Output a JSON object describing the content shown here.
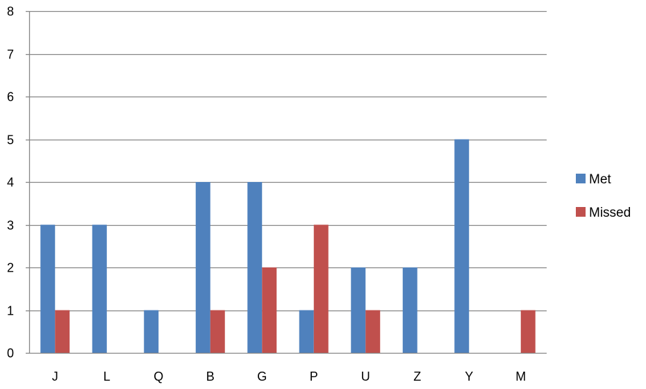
{
  "chart_data": {
    "type": "bar",
    "categories": [
      "J",
      "L",
      "Q",
      "B",
      "G",
      "P",
      "U",
      "Z",
      "Y",
      "M"
    ],
    "series": [
      {
        "name": "Met",
        "color": "#4F81BD",
        "values": [
          3,
          3,
          1,
          4,
          4,
          1,
          2,
          2,
          5,
          0
        ]
      },
      {
        "name": "Missed",
        "color": "#C0504D",
        "values": [
          1,
          0,
          0,
          1,
          2,
          3,
          1,
          0,
          0,
          1
        ]
      }
    ],
    "title": "",
    "xlabel": "",
    "ylabel": "",
    "ylim": [
      0,
      8
    ],
    "yticks": [
      "0",
      "1",
      "2",
      "3",
      "4",
      "5",
      "6",
      "7",
      "8"
    ],
    "grid": true,
    "legend": "right"
  }
}
